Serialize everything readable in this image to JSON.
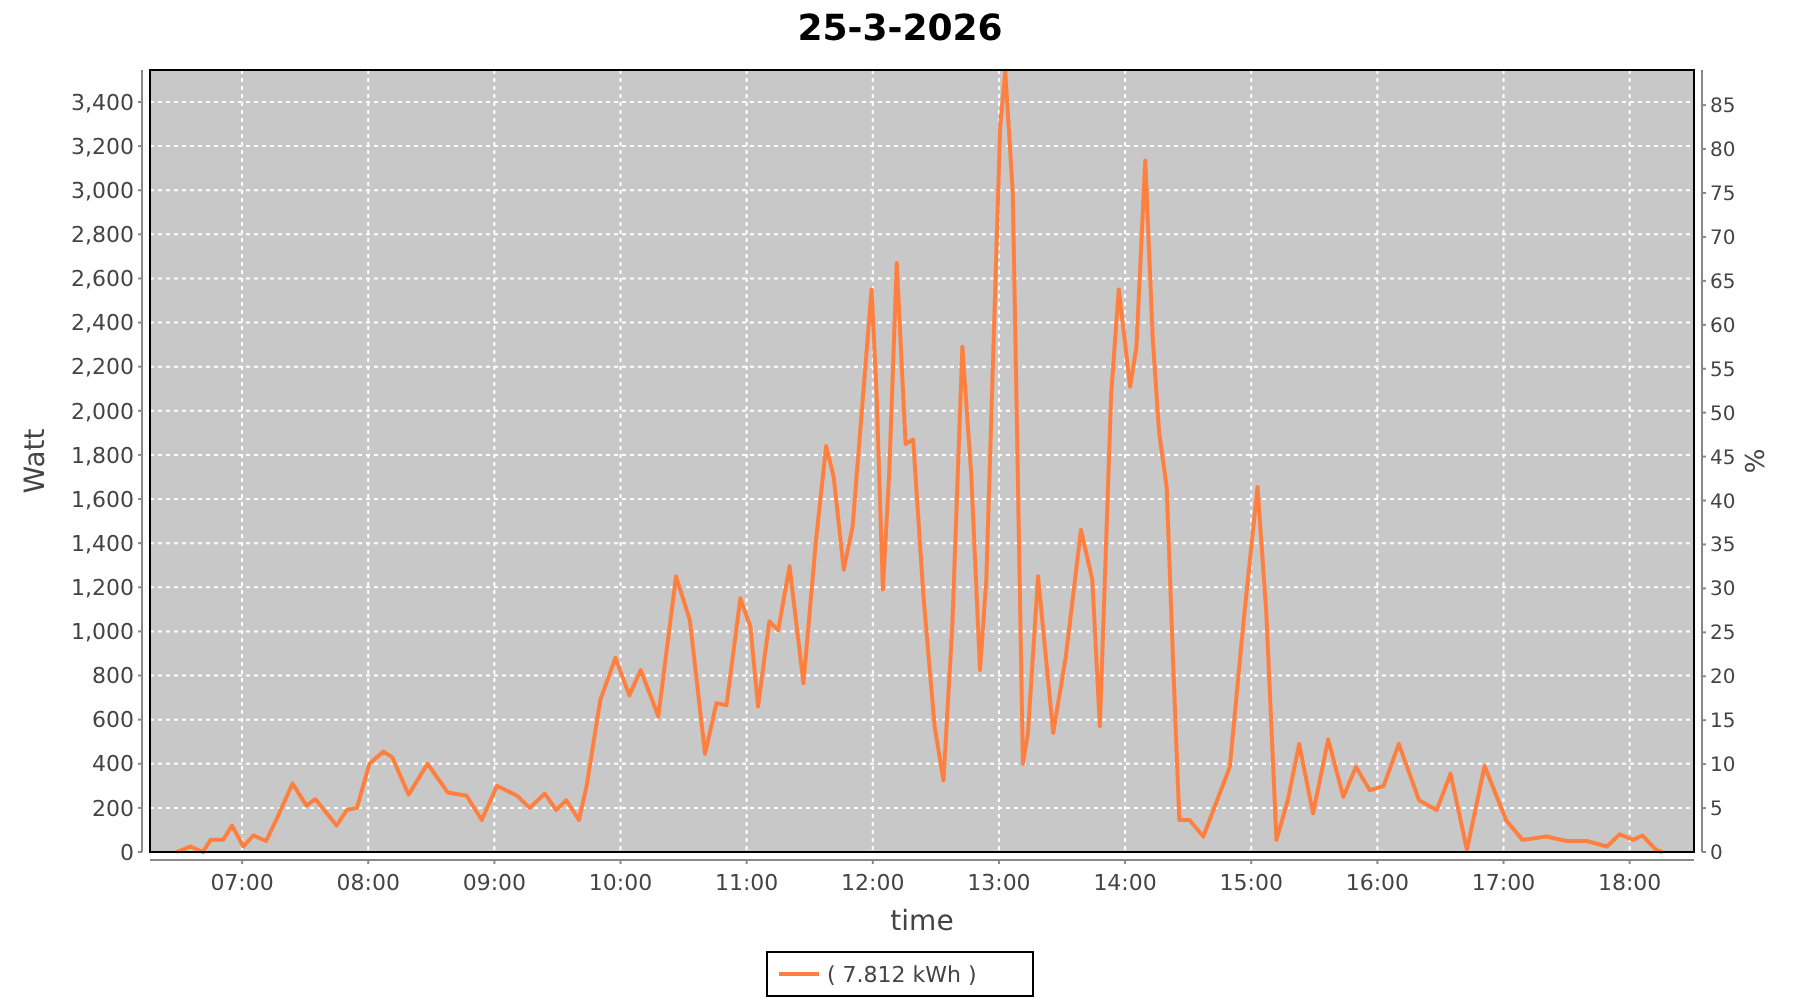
{
  "chart_data": {
    "type": "line",
    "title": "25-3-2026",
    "xlabel": "time",
    "ylabel": "Watt",
    "y2label": "%",
    "xlim": [
      6.27,
      18.51
    ],
    "xticks": [
      {
        "value": 7,
        "label": "07:00"
      },
      {
        "value": 8,
        "label": "08:00"
      },
      {
        "value": 9,
        "label": "09:00"
      },
      {
        "value": 10,
        "label": "10:00"
      },
      {
        "value": 11,
        "label": "11:00"
      },
      {
        "value": 12,
        "label": "12:00"
      },
      {
        "value": 13,
        "label": "13:00"
      },
      {
        "value": 14,
        "label": "14:00"
      },
      {
        "value": 15,
        "label": "15:00"
      },
      {
        "value": 16,
        "label": "16:00"
      },
      {
        "value": 17,
        "label": "17:00"
      },
      {
        "value": 18,
        "label": "18:00"
      }
    ],
    "ylim": [
      0,
      3545
    ],
    "yticks": [
      0,
      200,
      400,
      600,
      800,
      {
        "value": 1000,
        "label": "1,000"
      },
      {
        "value": 1200,
        "label": "1,200"
      },
      {
        "value": 1400,
        "label": "1,400"
      },
      {
        "value": 1600,
        "label": "1,600"
      },
      {
        "value": 1800,
        "label": "1,800"
      },
      {
        "value": 2000,
        "label": "2,000"
      },
      {
        "value": 2200,
        "label": "2,200"
      },
      {
        "value": 2400,
        "label": "2,400"
      },
      {
        "value": 2600,
        "label": "2,600"
      },
      {
        "value": 2800,
        "label": "2,800"
      },
      {
        "value": 3000,
        "label": "3,000"
      },
      {
        "value": 3200,
        "label": "3,200"
      },
      {
        "value": 3400,
        "label": "3,400"
      }
    ],
    "y2lim": [
      0,
      89
    ],
    "y2ticks": [
      0,
      5,
      10,
      15,
      20,
      25,
      30,
      35,
      40,
      45,
      50,
      55,
      60,
      65,
      70,
      75,
      80,
      85
    ],
    "grid": true,
    "legend": "bottom",
    "line_style": "solid",
    "series": [
      {
        "name": "( 7.812 kWh )",
        "color": "#ff7f3f",
        "x": [
          6.48,
          6.59,
          6.69,
          6.75,
          6.85,
          6.92,
          7.01,
          7.09,
          7.19,
          7.27,
          7.4,
          7.51,
          7.58,
          7.75,
          7.83,
          7.91,
          8.01,
          8.12,
          8.19,
          8.32,
          8.47,
          8.63,
          8.78,
          8.9,
          9.02,
          9.18,
          9.28,
          9.4,
          9.49,
          9.57,
          9.67,
          9.73,
          9.84,
          9.96,
          10.07,
          10.16,
          10.3,
          10.44,
          10.55,
          10.67,
          10.76,
          10.84,
          10.95,
          11.03,
          11.09,
          11.18,
          11.25,
          11.34,
          11.45,
          11.55,
          11.63,
          11.69,
          11.77,
          11.84,
          11.92,
          11.99,
          12.03,
          12.08,
          12.13,
          12.19,
          12.26,
          12.32,
          12.4,
          12.49,
          12.56,
          12.63,
          12.71,
          12.78,
          12.85,
          12.9,
          13.01,
          13.05,
          13.11,
          13.19,
          13.23,
          13.31,
          13.43,
          13.53,
          13.65,
          13.74,
          13.8,
          13.89,
          13.95,
          14.04,
          14.09,
          14.16,
          14.22,
          14.27,
          14.33,
          14.38,
          14.43,
          14.51,
          14.62,
          14.75,
          14.83,
          14.94,
          15.05,
          15.12,
          15.2,
          15.29,
          15.38,
          15.49,
          15.61,
          15.73,
          15.83,
          15.94,
          16.05,
          16.17,
          16.33,
          16.47,
          16.58,
          16.71,
          16.85,
          17.02,
          17.15,
          17.34,
          17.5,
          17.66,
          17.82,
          17.92,
          18.03,
          18.1,
          18.21,
          18.26
        ],
        "values": [
          0,
          25,
          0,
          55,
          55,
          120,
          25,
          75,
          50,
          145,
          310,
          210,
          240,
          120,
          190,
          200,
          400,
          455,
          430,
          260,
          400,
          270,
          255,
          145,
          300,
          255,
          200,
          265,
          190,
          235,
          145,
          295,
          690,
          880,
          710,
          825,
          615,
          1250,
          1050,
          445,
          675,
          665,
          1150,
          1020,
          660,
          1045,
          1005,
          1295,
          765,
          1415,
          1840,
          1700,
          1280,
          1475,
          2050,
          2550,
          2080,
          1190,
          1715,
          2670,
          1850,
          1870,
          1170,
          570,
          325,
          1020,
          2290,
          1715,
          825,
          1235,
          3290,
          3540,
          2985,
          400,
          540,
          1250,
          540,
          885,
          1460,
          1235,
          570,
          2080,
          2550,
          2110,
          2290,
          3135,
          2320,
          1900,
          1655,
          870,
          145,
          145,
          70,
          265,
          385,
          1050,
          1655,
          1080,
          55,
          235,
          490,
          175,
          510,
          250,
          385,
          280,
          300,
          490,
          235,
          190,
          355,
          10,
          390,
          145,
          55,
          70,
          50,
          50,
          25,
          80,
          55,
          75,
          10,
          0
        ]
      }
    ]
  }
}
